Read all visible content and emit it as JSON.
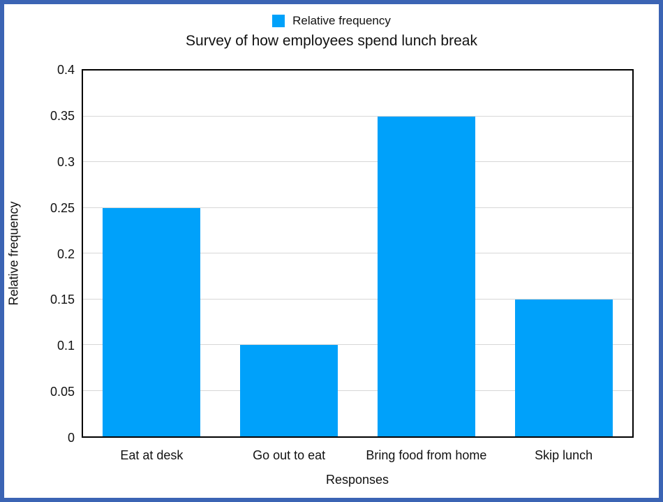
{
  "window": {
    "frame_border_color": "#3B64B4",
    "background_color": "#FFFFFF"
  },
  "chart_data": {
    "type": "bar",
    "title": "Survey of how employees spend lunch break",
    "legend_entries": [
      "Relative frequency"
    ],
    "legend_position": "top-center",
    "xlabel": "Responses",
    "ylabel": "Relative frequency",
    "categories": [
      "Eat at desk",
      "Go out to eat",
      "Bring food from home",
      "Skip lunch"
    ],
    "values": [
      0.25,
      0.1,
      0.35,
      0.15
    ],
    "ylim": [
      0,
      0.4
    ],
    "ytick_interval": 0.05,
    "ytick_labels": [
      "0.4",
      "0.35",
      "0.3",
      "0.25",
      "0.2",
      "0.15",
      "0.1",
      "0.05",
      "0"
    ],
    "grid": true,
    "bar_color": "#00A1FA",
    "grid_color": "#D7D7D7",
    "axis_frame_color": "#000000",
    "text_color": "#111111"
  }
}
